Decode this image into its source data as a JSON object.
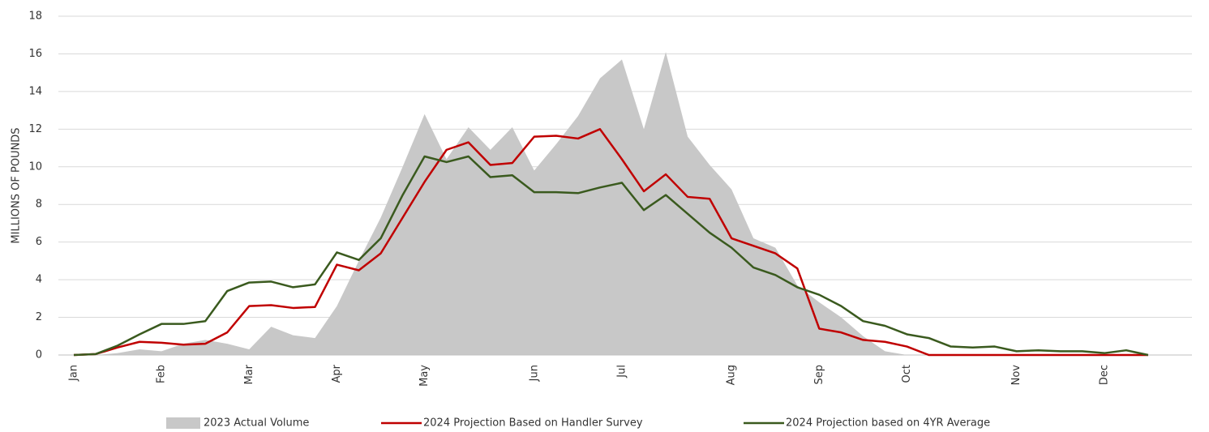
{
  "chart_data": {
    "type": "line",
    "y_label": "MILLIONS OF POUNDS",
    "categories": [
      "Jan",
      null,
      null,
      null,
      "Feb",
      null,
      null,
      null,
      "Mar",
      null,
      null,
      null,
      "Apr",
      null,
      null,
      null,
      "May",
      null,
      null,
      null,
      null,
      "Jun",
      null,
      null,
      null,
      "Jul",
      null,
      null,
      null,
      null,
      "Aug",
      null,
      null,
      null,
      "Sep",
      null,
      null,
      null,
      "Oct",
      null,
      null,
      null,
      null,
      "Nov",
      null,
      null,
      null,
      "Dec",
      null,
      null,
      null,
      null
    ],
    "ylim": [
      0,
      18
    ],
    "yticks": [
      0,
      2,
      4,
      6,
      8,
      10,
      12,
      14,
      16,
      18
    ],
    "grid": true,
    "legend": "bottom",
    "series": [
      {
        "name": "2023 Actual Volume",
        "type": "area",
        "color": "#c8c8c8",
        "values": [
          0,
          0,
          0.1,
          0.3,
          0.2,
          0.6,
          0.8,
          0.6,
          0.3,
          1.5,
          1.05,
          0.9,
          2.6,
          5.0,
          7.3,
          10.0,
          12.8,
          10.4,
          12.1,
          10.9,
          12.1,
          9.8,
          11.2,
          12.7,
          14.7,
          15.7,
          12.0,
          16.1,
          11.6,
          10.1,
          8.8,
          6.2,
          5.7,
          3.7,
          2.8,
          2.0,
          1.0,
          0.2,
          0,
          0,
          0,
          0,
          0,
          0,
          0,
          0,
          0,
          0,
          0,
          0,
          0,
          0
        ]
      },
      {
        "name": "2024 Projection Based on Handler Survey",
        "type": "line",
        "color": "#c00000",
        "values": [
          0,
          0.05,
          0.4,
          0.7,
          0.65,
          0.55,
          0.6,
          1.2,
          2.6,
          2.65,
          2.5,
          2.55,
          4.8,
          4.5,
          5.4,
          7.3,
          9.2,
          10.9,
          11.3,
          10.1,
          10.2,
          11.6,
          11.65,
          11.5,
          12.0,
          10.4,
          8.7,
          9.6,
          8.4,
          8.3,
          6.2,
          5.8,
          5.4,
          4.6,
          1.4,
          1.2,
          0.8,
          0.7,
          0.45,
          0,
          0,
          0,
          0,
          0,
          0,
          0,
          0,
          0,
          0,
          0,
          null,
          null
        ]
      },
      {
        "name": "2024 Projection based on 4YR Average",
        "type": "line",
        "color": "#3a5a1e",
        "values": [
          0,
          0.05,
          0.5,
          1.1,
          1.65,
          1.65,
          1.8,
          3.4,
          3.85,
          3.9,
          3.6,
          3.75,
          5.45,
          5.05,
          6.2,
          8.5,
          10.55,
          10.25,
          10.55,
          9.45,
          9.55,
          8.65,
          8.65,
          8.6,
          8.9,
          9.15,
          7.7,
          8.5,
          7.5,
          6.5,
          5.7,
          4.65,
          4.25,
          3.6,
          3.2,
          2.6,
          1.8,
          1.55,
          1.1,
          0.9,
          0.45,
          0.4,
          0.45,
          0.2,
          0.25,
          0.2,
          0.2,
          0.1,
          0.25,
          0,
          null,
          null
        ]
      }
    ]
  }
}
